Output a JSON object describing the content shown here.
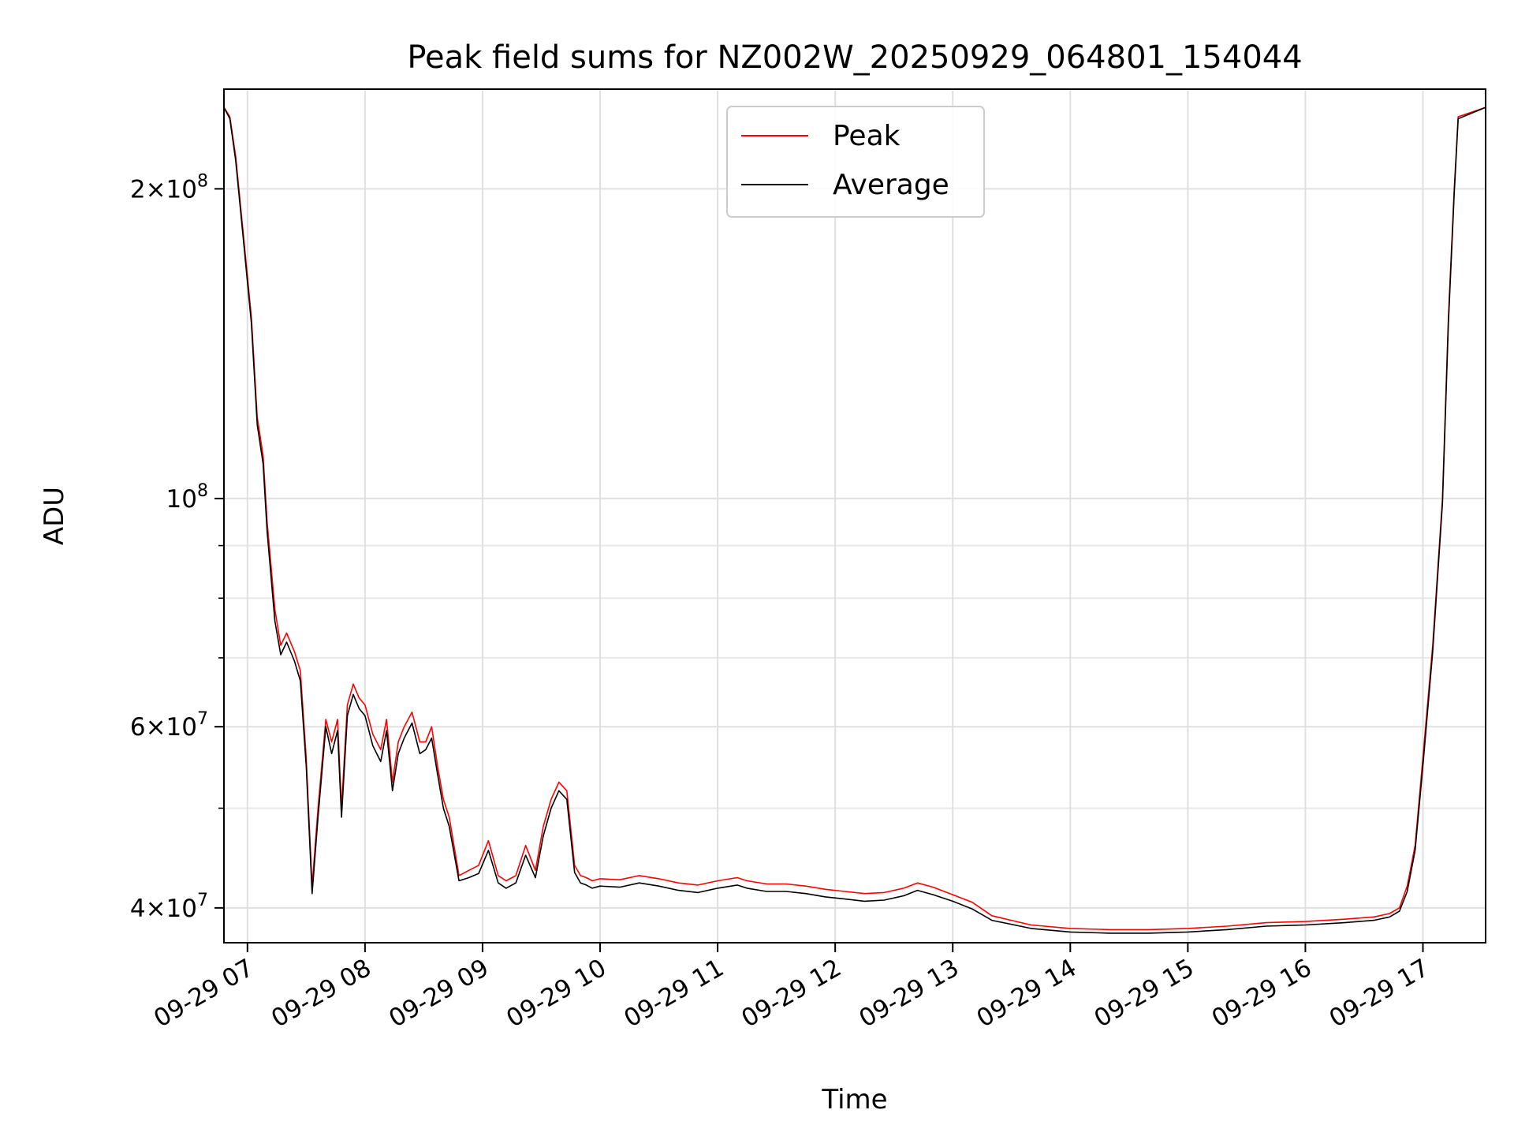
{
  "chart_data": {
    "type": "line",
    "title": "Peak field sums for NZ002W_20250929_064801_154044",
    "xlabel": "Time",
    "ylabel": "ADU",
    "yscale": "log",
    "ylim": [
      37000000,
      250000000
    ],
    "xlim": [
      "2025-09-29 06:48",
      "2025-09-29 17:32"
    ],
    "grid": true,
    "legend": {
      "placement": "upper center"
    },
    "x_ticks": [
      {
        "x": "2025-09-29 07:00",
        "label": "09-29 07"
      },
      {
        "x": "2025-09-29 08:00",
        "label": "09-29 08"
      },
      {
        "x": "2025-09-29 09:00",
        "label": "09-29 09"
      },
      {
        "x": "2025-09-29 10:00",
        "label": "09-29 10"
      },
      {
        "x": "2025-09-29 11:00",
        "label": "09-29 11"
      },
      {
        "x": "2025-09-29 12:00",
        "label": "09-29 12"
      },
      {
        "x": "2025-09-29 13:00",
        "label": "09-29 13"
      },
      {
        "x": "2025-09-29 14:00",
        "label": "09-29 14"
      },
      {
        "x": "2025-09-29 15:00",
        "label": "09-29 15"
      },
      {
        "x": "2025-09-29 16:00",
        "label": "09-29 16"
      },
      {
        "x": "2025-09-29 17:00",
        "label": "09-29 17"
      }
    ],
    "y_ticks": [
      {
        "y": 200000000,
        "mantissa": "2",
        "exp": "8"
      },
      {
        "y": 100000000,
        "mantissa": "",
        "exp": "8"
      },
      {
        "y": 60000000,
        "mantissa": "6",
        "exp": "7"
      },
      {
        "y": 40000000,
        "mantissa": "4",
        "exp": "7"
      }
    ],
    "y_minor_ticks": [
      50000000,
      70000000,
      80000000,
      90000000
    ],
    "series": [
      {
        "name": "Peak",
        "color": "#ff0000",
        "x": [
          "2025-09-29 06:48",
          "2025-09-29 06:51",
          "2025-09-29 06:54",
          "2025-09-29 06:58",
          "2025-09-29 07:02",
          "2025-09-29 07:05",
          "2025-09-29 07:08",
          "2025-09-29 07:10",
          "2025-09-29 07:14",
          "2025-09-29 07:17",
          "2025-09-29 07:20",
          "2025-09-29 07:24",
          "2025-09-29 07:27",
          "2025-09-29 07:30",
          "2025-09-29 07:33",
          "2025-09-29 07:36",
          "2025-09-29 07:40",
          "2025-09-29 07:43",
          "2025-09-29 07:46",
          "2025-09-29 07:48",
          "2025-09-29 07:51",
          "2025-09-29 07:54",
          "2025-09-29 07:57",
          "2025-09-29 08:00",
          "2025-09-29 08:04",
          "2025-09-29 08:08",
          "2025-09-29 08:11",
          "2025-09-29 08:14",
          "2025-09-29 08:17",
          "2025-09-29 08:20",
          "2025-09-29 08:24",
          "2025-09-29 08:28",
          "2025-09-29 08:31",
          "2025-09-29 08:34",
          "2025-09-29 08:37",
          "2025-09-29 08:40",
          "2025-09-29 08:43",
          "2025-09-29 08:48",
          "2025-09-29 08:53",
          "2025-09-29 08:58",
          "2025-09-29 09:03",
          "2025-09-29 09:08",
          "2025-09-29 09:12",
          "2025-09-29 09:17",
          "2025-09-29 09:22",
          "2025-09-29 09:27",
          "2025-09-29 09:31",
          "2025-09-29 09:35",
          "2025-09-29 09:39",
          "2025-09-29 09:43",
          "2025-09-29 09:47",
          "2025-09-29 09:50",
          "2025-09-29 09:53",
          "2025-09-29 09:56",
          "2025-09-29 10:00",
          "2025-09-29 10:10",
          "2025-09-29 10:20",
          "2025-09-29 10:30",
          "2025-09-29 10:40",
          "2025-09-29 10:50",
          "2025-09-29 11:00",
          "2025-09-29 11:10",
          "2025-09-29 11:15",
          "2025-09-29 11:25",
          "2025-09-29 11:35",
          "2025-09-29 11:45",
          "2025-09-29 11:55",
          "2025-09-29 12:05",
          "2025-09-29 12:15",
          "2025-09-29 12:25",
          "2025-09-29 12:35",
          "2025-09-29 12:42",
          "2025-09-29 12:50",
          "2025-09-29 13:00",
          "2025-09-29 13:10",
          "2025-09-29 13:20",
          "2025-09-29 13:40",
          "2025-09-29 14:00",
          "2025-09-29 14:20",
          "2025-09-29 14:40",
          "2025-09-29 15:00",
          "2025-09-29 15:20",
          "2025-09-29 15:40",
          "2025-09-29 16:00",
          "2025-09-29 16:20",
          "2025-09-29 16:35",
          "2025-09-29 16:43",
          "2025-09-29 16:48",
          "2025-09-29 16:52",
          "2025-09-29 16:56",
          "2025-09-29 17:00",
          "2025-09-29 17:05",
          "2025-09-29 17:10",
          "2025-09-29 17:13",
          "2025-09-29 17:16",
          "2025-09-29 17:18",
          "2025-09-29 17:32"
        ],
        "y": [
          240000000,
          235000000,
          215000000,
          180000000,
          150000000,
          120000000,
          110000000,
          95000000,
          78000000,
          72000000,
          74000000,
          71000000,
          68000000,
          56000000,
          42000000,
          50000000,
          61000000,
          58000000,
          61000000,
          50000000,
          63000000,
          66000000,
          64000000,
          63000000,
          59000000,
          57000000,
          61000000,
          53000000,
          58000000,
          60000000,
          62000000,
          58000000,
          58000000,
          60000000,
          55000000,
          51000000,
          49000000,
          43000000,
          43500000,
          44000000,
          46500000,
          43000000,
          42500000,
          43000000,
          46000000,
          43500000,
          48000000,
          51000000,
          53000000,
          52000000,
          44000000,
          43000000,
          42800000,
          42500000,
          42700000,
          42600000,
          43000000,
          42700000,
          42300000,
          42100000,
          42500000,
          42800000,
          42500000,
          42200000,
          42200000,
          42000000,
          41700000,
          41500000,
          41300000,
          41400000,
          41800000,
          42300000,
          41900000,
          41200000,
          40500000,
          39300000,
          38500000,
          38200000,
          38100000,
          38100000,
          38200000,
          38400000,
          38700000,
          38800000,
          39000000,
          39200000,
          39500000,
          40000000,
          42000000,
          46000000,
          56000000,
          72000000,
          100000000,
          150000000,
          200000000,
          235000000,
          240000000
        ]
      },
      {
        "name": "Average",
        "color": "#000000",
        "x": [
          "2025-09-29 06:48",
          "2025-09-29 06:51",
          "2025-09-29 06:54",
          "2025-09-29 06:58",
          "2025-09-29 07:02",
          "2025-09-29 07:05",
          "2025-09-29 07:08",
          "2025-09-29 07:10",
          "2025-09-29 07:14",
          "2025-09-29 07:17",
          "2025-09-29 07:20",
          "2025-09-29 07:24",
          "2025-09-29 07:27",
          "2025-09-29 07:30",
          "2025-09-29 07:33",
          "2025-09-29 07:36",
          "2025-09-29 07:40",
          "2025-09-29 07:43",
          "2025-09-29 07:46",
          "2025-09-29 07:48",
          "2025-09-29 07:51",
          "2025-09-29 07:54",
          "2025-09-29 07:57",
          "2025-09-29 08:00",
          "2025-09-29 08:04",
          "2025-09-29 08:08",
          "2025-09-29 08:11",
          "2025-09-29 08:14",
          "2025-09-29 08:17",
          "2025-09-29 08:20",
          "2025-09-29 08:24",
          "2025-09-29 08:28",
          "2025-09-29 08:31",
          "2025-09-29 08:34",
          "2025-09-29 08:37",
          "2025-09-29 08:40",
          "2025-09-29 08:43",
          "2025-09-29 08:48",
          "2025-09-29 08:53",
          "2025-09-29 08:58",
          "2025-09-29 09:03",
          "2025-09-29 09:08",
          "2025-09-29 09:12",
          "2025-09-29 09:17",
          "2025-09-29 09:22",
          "2025-09-29 09:27",
          "2025-09-29 09:31",
          "2025-09-29 09:35",
          "2025-09-29 09:39",
          "2025-09-29 09:43",
          "2025-09-29 09:47",
          "2025-09-29 09:50",
          "2025-09-29 09:53",
          "2025-09-29 09:56",
          "2025-09-29 10:00",
          "2025-09-29 10:10",
          "2025-09-29 10:20",
          "2025-09-29 10:30",
          "2025-09-29 10:40",
          "2025-09-29 10:50",
          "2025-09-29 11:00",
          "2025-09-29 11:10",
          "2025-09-29 11:15",
          "2025-09-29 11:25",
          "2025-09-29 11:35",
          "2025-09-29 11:45",
          "2025-09-29 11:55",
          "2025-09-29 12:05",
          "2025-09-29 12:15",
          "2025-09-29 12:25",
          "2025-09-29 12:35",
          "2025-09-29 12:42",
          "2025-09-29 12:50",
          "2025-09-29 13:00",
          "2025-09-29 13:10",
          "2025-09-29 13:20",
          "2025-09-29 13:40",
          "2025-09-29 14:00",
          "2025-09-29 14:20",
          "2025-09-29 14:40",
          "2025-09-29 15:00",
          "2025-09-29 15:20",
          "2025-09-29 15:40",
          "2025-09-29 16:00",
          "2025-09-29 16:20",
          "2025-09-29 16:35",
          "2025-09-29 16:43",
          "2025-09-29 16:48",
          "2025-09-29 16:52",
          "2025-09-29 16:56",
          "2025-09-29 17:00",
          "2025-09-29 17:05",
          "2025-09-29 17:10",
          "2025-09-29 17:13",
          "2025-09-29 17:16",
          "2025-09-29 17:18",
          "2025-09-29 17:32"
        ],
        "y": [
          240000000,
          234000000,
          213000000,
          178000000,
          148000000,
          118000000,
          108000000,
          93000000,
          76000000,
          70500000,
          72500000,
          69500000,
          66500000,
          55000000,
          41300000,
          49000000,
          60000000,
          56500000,
          59500000,
          49000000,
          61500000,
          64500000,
          62500000,
          61500000,
          57500000,
          55500000,
          59500000,
          52000000,
          56500000,
          58500000,
          60500000,
          56500000,
          57000000,
          58500000,
          54000000,
          50000000,
          48000000,
          42500000,
          42800000,
          43200000,
          45500000,
          42300000,
          41800000,
          42300000,
          45000000,
          42800000,
          47000000,
          50000000,
          52000000,
          51000000,
          43300000,
          42300000,
          42100000,
          41800000,
          42000000,
          41900000,
          42300000,
          42000000,
          41600000,
          41400000,
          41800000,
          42100000,
          41800000,
          41500000,
          41500000,
          41300000,
          41000000,
          40800000,
          40600000,
          40700000,
          41100000,
          41600000,
          41200000,
          40600000,
          39900000,
          38900000,
          38200000,
          37900000,
          37800000,
          37800000,
          37900000,
          38100000,
          38400000,
          38500000,
          38700000,
          38900000,
          39200000,
          39700000,
          41500000,
          45500000,
          55000000,
          71000000,
          99000000,
          148000000,
          198000000,
          234000000,
          240000000
        ]
      }
    ]
  }
}
